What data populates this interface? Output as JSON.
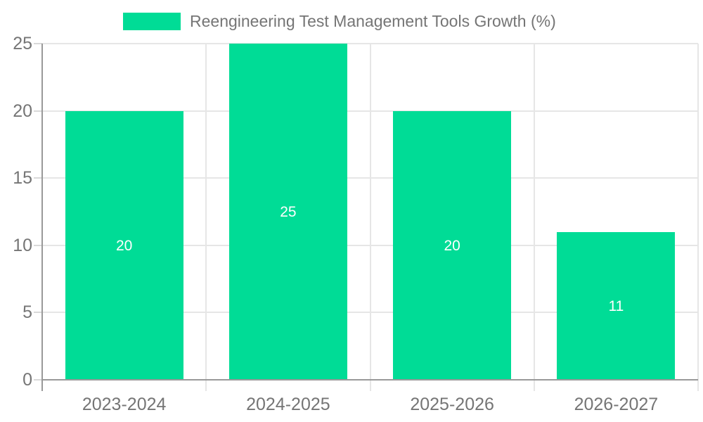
{
  "chart_data": {
    "type": "bar",
    "title": "Reengineering Test Management Tools Growth (%)",
    "categories": [
      "2023-2024",
      "2024-2025",
      "2025-2026",
      "2026-2027"
    ],
    "values": [
      20,
      25,
      20,
      11
    ],
    "value_labels": [
      "20",
      "25",
      "20",
      "11"
    ],
    "yticks": [
      0,
      5,
      10,
      15,
      20,
      25
    ],
    "ylim": [
      0,
      25
    ],
    "xlabel": "",
    "ylabel": "",
    "grid": true,
    "legend_position": "top",
    "colors": {
      "bar": "#00DC96",
      "value_label": "#FFFFFF",
      "axis_label": "#757575",
      "axis_line": "#999999",
      "gridline": "#E6E6E6",
      "tick": "#D9D9D9",
      "background": "#FFFFFF"
    }
  }
}
